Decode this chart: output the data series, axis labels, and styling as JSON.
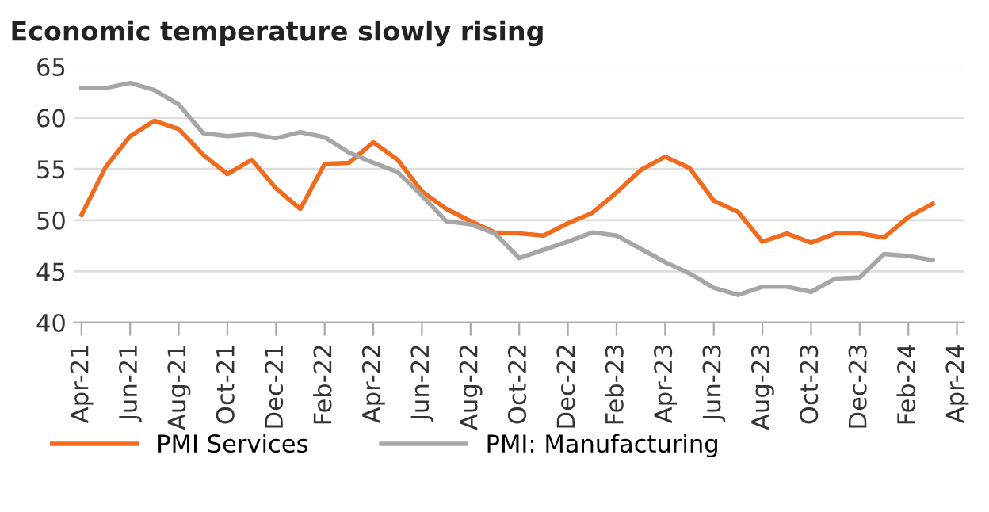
{
  "chart_data": {
    "type": "line",
    "title": "Economic temperature slowly rising",
    "categories": [
      "Apr-21",
      null,
      "Jun-21",
      null,
      "Aug-21",
      null,
      "Oct-21",
      null,
      "Dec-21",
      null,
      "Feb-22",
      null,
      "Apr-22",
      null,
      "Jun-22",
      null,
      "Aug-22",
      null,
      "Oct-22",
      null,
      "Dec-22",
      null,
      "Feb-23",
      null,
      "Apr-23",
      null,
      "Jun-23",
      null,
      "Aug-23",
      null,
      "Oct-23",
      null,
      "Dec-23",
      null,
      "Feb-24",
      null,
      "Apr-24"
    ],
    "series": [
      {
        "name": "PMI Services",
        "color": "#f26a1b",
        "values": [
          50.5,
          55.2,
          58.2,
          59.7,
          58.9,
          56.4,
          54.5,
          55.9,
          53.1,
          51.1,
          55.5,
          55.6,
          57.6,
          55.9,
          52.8,
          51.1,
          49.9,
          48.8,
          48.7,
          48.5,
          49.7,
          50.7,
          52.7,
          54.9,
          56.2,
          55.1,
          51.9,
          50.8,
          47.9,
          48.7,
          47.8,
          48.7,
          48.7,
          48.3,
          50.3,
          51.6,
          null
        ]
      },
      {
        "name": "PMI: Manufacturing",
        "color": "#a6a6a6",
        "values": [
          62.9,
          62.9,
          63.4,
          62.7,
          61.3,
          58.5,
          58.2,
          58.4,
          58.0,
          58.6,
          58.1,
          56.6,
          55.6,
          54.7,
          52.4,
          49.9,
          49.6,
          48.7,
          46.3,
          47.1,
          47.9,
          48.8,
          48.5,
          47.2,
          45.9,
          44.8,
          43.4,
          42.7,
          43.5,
          43.5,
          43.0,
          44.3,
          44.4,
          46.7,
          46.5,
          46.1,
          null
        ]
      }
    ],
    "ylim": [
      40,
      65
    ],
    "yticks": [
      40,
      45,
      50,
      55,
      60,
      65
    ],
    "grid": "y",
    "legend": "bottom",
    "marker": "none",
    "line_style": "solid"
  }
}
